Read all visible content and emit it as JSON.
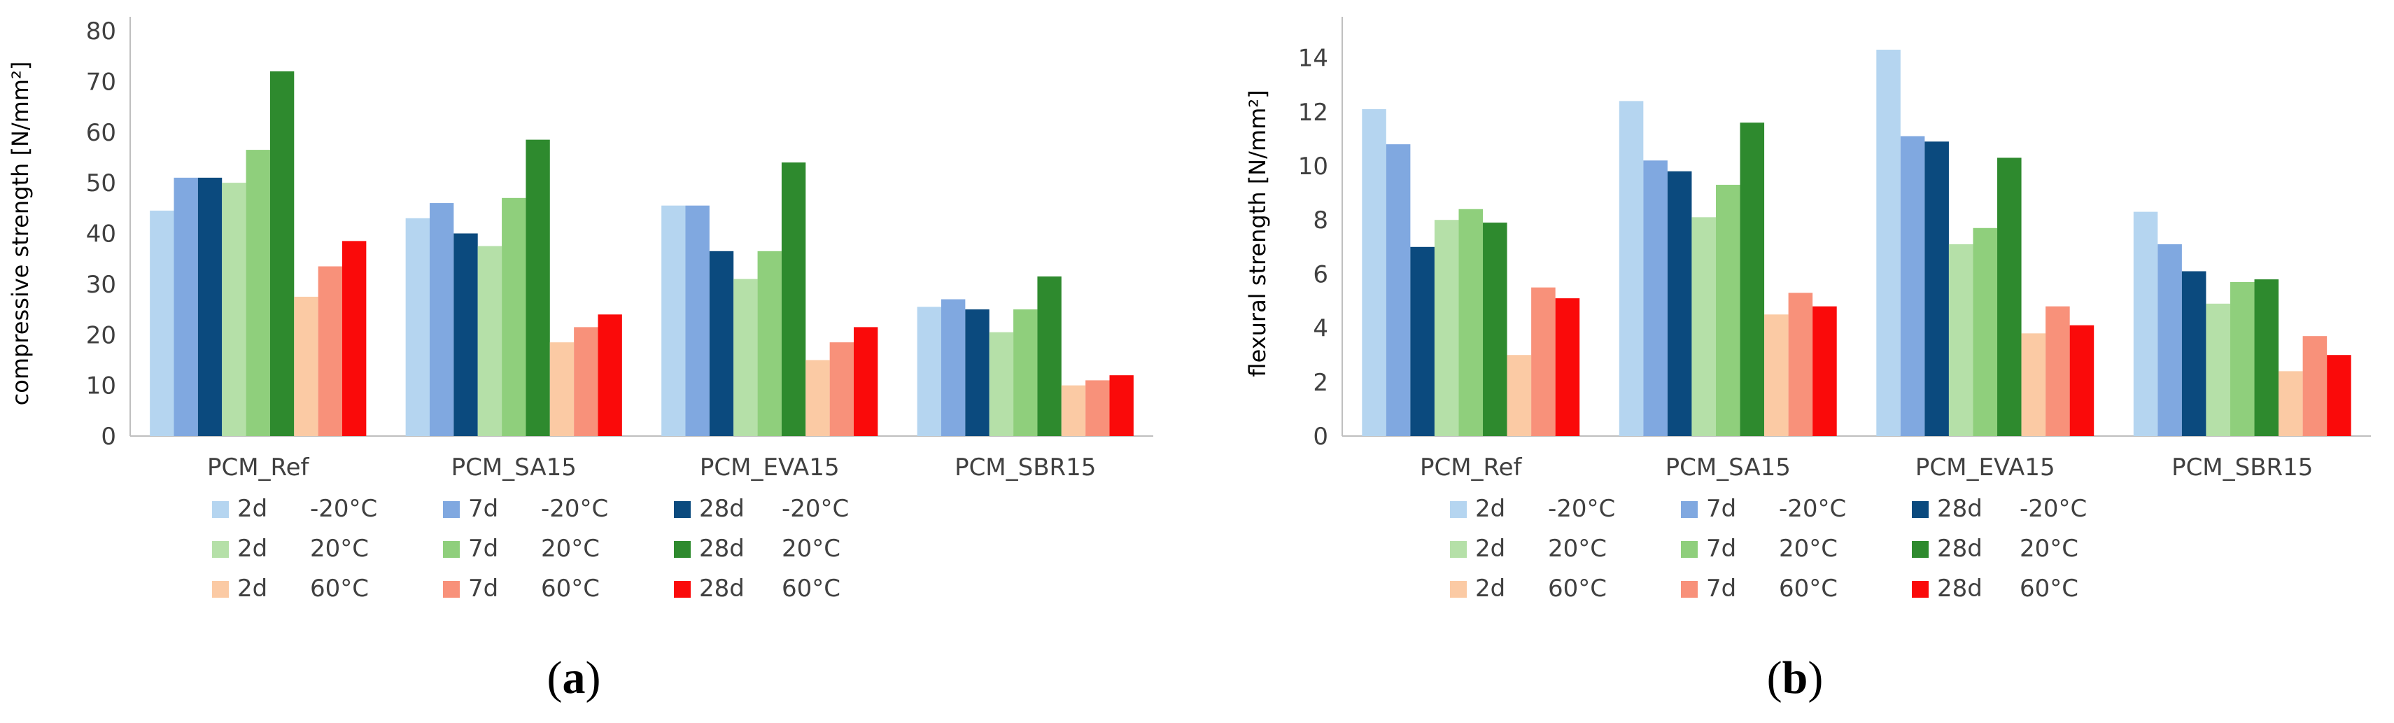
{
  "series_styles": [
    {
      "key": "2d_m20",
      "color": "#b5d5f0"
    },
    {
      "key": "7d_m20",
      "color": "#80a8e0"
    },
    {
      "key": "28d_m20",
      "color": "#0b4a7e"
    },
    {
      "key": "2d_20",
      "color": "#b5e0a8"
    },
    {
      "key": "7d_20",
      "color": "#8fcf7c"
    },
    {
      "key": "28d_20",
      "color": "#2e8a2e"
    },
    {
      "key": "2d_60",
      "color": "#fbcaa4"
    },
    {
      "key": "7d_60",
      "color": "#f8917a"
    },
    {
      "key": "28d_60",
      "color": "#fa0a0a"
    }
  ],
  "colors": {
    "axis": "#bfbfbf",
    "gridline": "#d9d9d9",
    "text": "#404040"
  },
  "chart_data": [
    {
      "type": "bar",
      "panel": "(a)",
      "panel_text": "a",
      "title": "",
      "xlabel": "",
      "ylabel": "compressive strength [N/mm²]",
      "ylim": [
        0,
        80
      ],
      "yticks": [
        0,
        10,
        20,
        30,
        40,
        50,
        60,
        70,
        80
      ],
      "grid": false,
      "legend_position": "bottom",
      "categories": [
        "PCM_Ref",
        "PCM_SA15",
        "PCM_EVA15",
        "PCM_SBR15"
      ],
      "series": [
        {
          "name": "2d  -20°C",
          "age": "2d",
          "temp": "-20°C",
          "values": [
            44.5,
            43.0,
            45.5,
            25.5
          ]
        },
        {
          "name": "7d  -20°C",
          "age": "7d",
          "temp": "-20°C",
          "values": [
            51.0,
            46.0,
            45.5,
            27.0
          ]
        },
        {
          "name": "28d  -20°C",
          "age": "28d",
          "temp": "-20°C",
          "values": [
            51.0,
            40.0,
            36.5,
            25.0
          ]
        },
        {
          "name": "2d  20°C",
          "age": "2d",
          "temp": "20°C",
          "values": [
            50.0,
            37.5,
            31.0,
            20.5
          ]
        },
        {
          "name": "7d  20°C",
          "age": "7d",
          "temp": "20°C",
          "values": [
            56.5,
            47.0,
            36.5,
            25.0
          ]
        },
        {
          "name": "28d  20°C",
          "age": "28d",
          "temp": "20°C",
          "values": [
            72.0,
            58.5,
            54.0,
            31.5
          ]
        },
        {
          "name": "2d  60°C",
          "age": "2d",
          "temp": "60°C",
          "values": [
            27.5,
            18.5,
            15.0,
            10.0
          ]
        },
        {
          "name": "7d  60°C",
          "age": "7d",
          "temp": "60°C",
          "values": [
            33.5,
            21.5,
            18.5,
            11.0
          ]
        },
        {
          "name": "28d  60°C",
          "age": "28d",
          "temp": "60°C",
          "values": [
            38.5,
            24.0,
            21.5,
            12.0
          ]
        }
      ]
    },
    {
      "type": "bar",
      "panel": "(b)",
      "panel_text": "b",
      "title": "",
      "xlabel": "",
      "ylabel": "flexural strength [N/mm²]",
      "ylim": [
        0,
        15
      ],
      "yticks": [
        0,
        2,
        4,
        6,
        8,
        10,
        12,
        14
      ],
      "grid": false,
      "legend_position": "bottom",
      "categories": [
        "PCM_Ref",
        "PCM_SA15",
        "PCM_EVA15",
        "PCM_SBR15"
      ],
      "series": [
        {
          "name": "2d  -20°C",
          "age": "2d",
          "temp": "-20°C",
          "values": [
            12.1,
            12.4,
            14.3,
            8.3
          ]
        },
        {
          "name": "7d  -20°C",
          "age": "7d",
          "temp": "-20°C",
          "values": [
            10.8,
            10.2,
            11.1,
            7.1
          ]
        },
        {
          "name": "28d  -20°C",
          "age": "28d",
          "temp": "-20°C",
          "values": [
            7.0,
            9.8,
            10.9,
            6.1
          ]
        },
        {
          "name": "2d  20°C",
          "age": "2d",
          "temp": "20°C",
          "values": [
            8.0,
            8.1,
            7.1,
            4.9
          ]
        },
        {
          "name": "7d  20°C",
          "age": "7d",
          "temp": "20°C",
          "values": [
            8.4,
            9.3,
            7.7,
            5.7
          ]
        },
        {
          "name": "28d  20°C",
          "age": "28d",
          "temp": "20°C",
          "values": [
            7.9,
            11.6,
            10.3,
            5.8
          ]
        },
        {
          "name": "2d  60°C",
          "age": "2d",
          "temp": "60°C",
          "values": [
            3.0,
            4.5,
            3.8,
            2.4
          ]
        },
        {
          "name": "7d  60°C",
          "age": "7d",
          "temp": "60°C",
          "values": [
            5.5,
            5.3,
            4.8,
            3.7
          ]
        },
        {
          "name": "28d  60°C",
          "age": "28d",
          "temp": "60°C",
          "values": [
            5.1,
            4.8,
            4.1,
            3.0
          ]
        }
      ]
    }
  ]
}
